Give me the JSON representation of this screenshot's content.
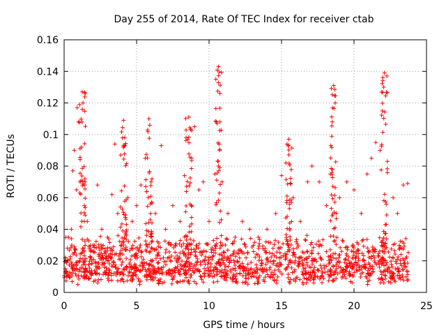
{
  "chart_data": {
    "type": "scatter",
    "title": "Day 255 of 2014, Rate Of TEC Index for receiver ctab",
    "xlabel": "GPS time / hours",
    "ylabel": "ROTI / TECUs",
    "xlim": [
      0,
      25
    ],
    "ylim": [
      0,
      0.16
    ],
    "xticks": [
      0,
      5,
      10,
      15,
      20,
      25
    ],
    "xtick_labels": [
      "0",
      "5",
      "10",
      "15",
      "20",
      "25"
    ],
    "yticks": [
      0,
      0.02,
      0.04,
      0.06,
      0.08,
      0.1,
      0.12,
      0.14,
      0.16
    ],
    "ytick_labels": [
      "0",
      "0.02",
      "0.04",
      "0.06",
      "0.08",
      "0.1",
      "0.12",
      "0.14",
      "0.16"
    ],
    "grid": true,
    "marker": "plus",
    "color": "#ff0000",
    "x_range_data": [
      0.0,
      23.75
    ],
    "typical_band": [
      0.005,
      0.045
    ],
    "peaks": [
      {
        "x": 1.25,
        "y": 0.127
      },
      {
        "x": 4.1,
        "y": 0.109
      },
      {
        "x": 5.85,
        "y": 0.11
      },
      {
        "x": 8.6,
        "y": 0.111
      },
      {
        "x": 10.65,
        "y": 0.143
      },
      {
        "x": 15.5,
        "y": 0.097
      },
      {
        "x": 18.6,
        "y": 0.131
      },
      {
        "x": 22.1,
        "y": 0.139
      }
    ],
    "series": [
      {
        "name": "ROTI",
        "points": [
          [
            0.1,
            0.022
          ],
          [
            0.3,
            0.035
          ],
          [
            0.5,
            0.04
          ],
          [
            0.6,
            0.077
          ],
          [
            0.7,
            0.09
          ],
          [
            0.85,
            0.065
          ],
          [
            0.9,
            0.117
          ],
          [
            1.0,
            0.108
          ],
          [
            1.1,
            0.07
          ],
          [
            1.2,
            0.092
          ],
          [
            1.25,
            0.127
          ],
          [
            1.3,
            0.12
          ],
          [
            1.4,
            0.055
          ],
          [
            1.6,
            0.045
          ],
          [
            2.0,
            0.03
          ],
          [
            2.3,
            0.068
          ],
          [
            2.6,
            0.04
          ],
          [
            3.0,
            0.035
          ],
          [
            3.3,
            0.062
          ],
          [
            3.5,
            0.094
          ],
          [
            3.7,
            0.05
          ],
          [
            3.9,
            0.087
          ],
          [
            4.1,
            0.109
          ],
          [
            4.2,
            0.093
          ],
          [
            4.4,
            0.06
          ],
          [
            4.7,
            0.045
          ],
          [
            5.0,
            0.055
          ],
          [
            5.3,
            0.068
          ],
          [
            5.6,
            0.085
          ],
          [
            5.85,
            0.11
          ],
          [
            6.0,
            0.07
          ],
          [
            6.3,
            0.05
          ],
          [
            6.7,
            0.093
          ],
          [
            7.0,
            0.04
          ],
          [
            7.5,
            0.055
          ],
          [
            8.0,
            0.045
          ],
          [
            8.3,
            0.074
          ],
          [
            8.6,
            0.111
          ],
          [
            8.8,
            0.085
          ],
          [
            9.0,
            0.105
          ],
          [
            9.3,
            0.065
          ],
          [
            9.6,
            0.07
          ],
          [
            10.0,
            0.045
          ],
          [
            10.4,
            0.075
          ],
          [
            10.55,
            0.107
          ],
          [
            10.65,
            0.143
          ],
          [
            10.75,
            0.126
          ],
          [
            10.9,
            0.07
          ],
          [
            11.3,
            0.05
          ],
          [
            11.8,
            0.035
          ],
          [
            12.3,
            0.045
          ],
          [
            12.8,
            0.04
          ],
          [
            13.4,
            0.035
          ],
          [
            14.0,
            0.04
          ],
          [
            14.6,
            0.05
          ],
          [
            15.0,
            0.074
          ],
          [
            15.3,
            0.082
          ],
          [
            15.5,
            0.097
          ],
          [
            15.8,
            0.06
          ],
          [
            16.3,
            0.045
          ],
          [
            16.8,
            0.07
          ],
          [
            17.1,
            0.08
          ],
          [
            17.6,
            0.07
          ],
          [
            18.1,
            0.055
          ],
          [
            18.4,
            0.093
          ],
          [
            18.5,
            0.108
          ],
          [
            18.6,
            0.131
          ],
          [
            18.7,
            0.12
          ],
          [
            19.0,
            0.06
          ],
          [
            19.5,
            0.07
          ],
          [
            20.0,
            0.065
          ],
          [
            20.5,
            0.05
          ],
          [
            20.9,
            0.075
          ],
          [
            21.2,
            0.085
          ],
          [
            21.5,
            0.095
          ],
          [
            21.8,
            0.09
          ],
          [
            21.95,
            0.115
          ],
          [
            22.05,
            0.13
          ],
          [
            22.1,
            0.139
          ],
          [
            22.3,
            0.083
          ],
          [
            22.7,
            0.06
          ],
          [
            23.0,
            0.05
          ],
          [
            23.4,
            0.068
          ],
          [
            23.7,
            0.069
          ]
        ]
      }
    ]
  }
}
